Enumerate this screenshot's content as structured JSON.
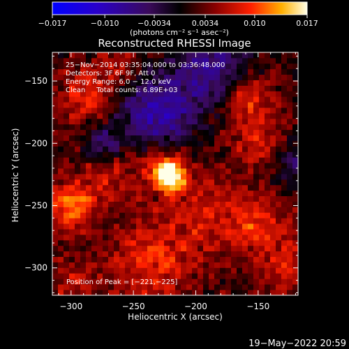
{
  "chart_data": {
    "type": "heatmap",
    "title": "Reconstructed RHESSI Image",
    "xlabel": "Heliocentric X (arcsec)",
    "ylabel": "Heliocentric Y (arcsec)",
    "xlim": [
      -315,
      -118
    ],
    "ylim": [
      -322,
      -127
    ],
    "x_ticks": [
      -300,
      -250,
      -200,
      -150
    ],
    "x_tick_labels": [
      "−300",
      "−250",
      "−200",
      "−150"
    ],
    "y_ticks": [
      -150,
      -200,
      -250,
      -300
    ],
    "y_tick_labels": [
      "−150",
      "−200",
      "−250",
      "−300"
    ],
    "colorbar": {
      "range": [
        -0.017,
        0.017
      ],
      "ticks": [
        -0.017,
        -0.01,
        -0.0034,
        0.0034,
        0.01,
        0.017
      ],
      "tick_labels": [
        "−0.017",
        "−0.010",
        "−0.0034",
        "0.0034",
        "0.010",
        "0.017"
      ],
      "units_label": "(photons cm⁻² s⁻¹ asec⁻²)"
    },
    "annotations": [
      "25−Nov−2014 03:35:04.000 to 03:36:48.000",
      "Detectors: 3F 6F 9F, Att 0",
      "Energy Range: 6.0 − 12.0 keV",
      "Clean     Total counts: 6.89E+03"
    ],
    "peak_label": "Position of Peak = [−221,−225]",
    "peak": {
      "x": -221,
      "y": -225,
      "value": 0.017
    },
    "emission_regions": [
      {
        "x": -221,
        "y": -225,
        "sigma": 8,
        "amplitude": 1.0
      },
      {
        "x": -228,
        "y": -218,
        "sigma": 14,
        "amplitude": 0.35
      },
      {
        "x": -300,
        "y": -250,
        "sigma": 14,
        "amplitude": 0.55
      },
      {
        "x": -288,
        "y": -162,
        "sigma": 16,
        "amplitude": 0.38
      },
      {
        "x": -160,
        "y": -160,
        "sigma": 13,
        "amplitude": 0.45
      },
      {
        "x": -150,
        "y": -195,
        "sigma": 16,
        "amplitude": 0.35
      },
      {
        "x": -150,
        "y": -265,
        "sigma": 18,
        "amplitude": 0.38
      },
      {
        "x": -125,
        "y": -300,
        "sigma": 14,
        "amplitude": 0.35
      },
      {
        "x": -235,
        "y": -295,
        "sigma": 24,
        "amplitude": 0.38
      },
      {
        "x": -270,
        "y": -225,
        "sigma": 16,
        "amplitude": 0.28
      },
      {
        "x": -195,
        "y": -255,
        "sigma": 22,
        "amplitude": 0.28
      },
      {
        "x": -300,
        "y": -310,
        "sigma": 14,
        "amplitude": 0.25
      },
      {
        "x": -260,
        "y": -140,
        "sigma": 12,
        "amplitude": 0.22
      }
    ],
    "negative_regions": [
      {
        "x": -230,
        "y": -175,
        "sigma": 22,
        "amplitude": 0.65
      },
      {
        "x": -185,
        "y": -140,
        "sigma": 20,
        "amplitude": 0.55
      },
      {
        "x": -275,
        "y": -200,
        "sigma": 10,
        "amplitude": 0.45
      },
      {
        "x": -120,
        "y": -215,
        "sigma": 14,
        "amplitude": 0.35
      }
    ],
    "background_level": 0.12,
    "grid": false,
    "footer": "19−May−2022 20:59"
  }
}
